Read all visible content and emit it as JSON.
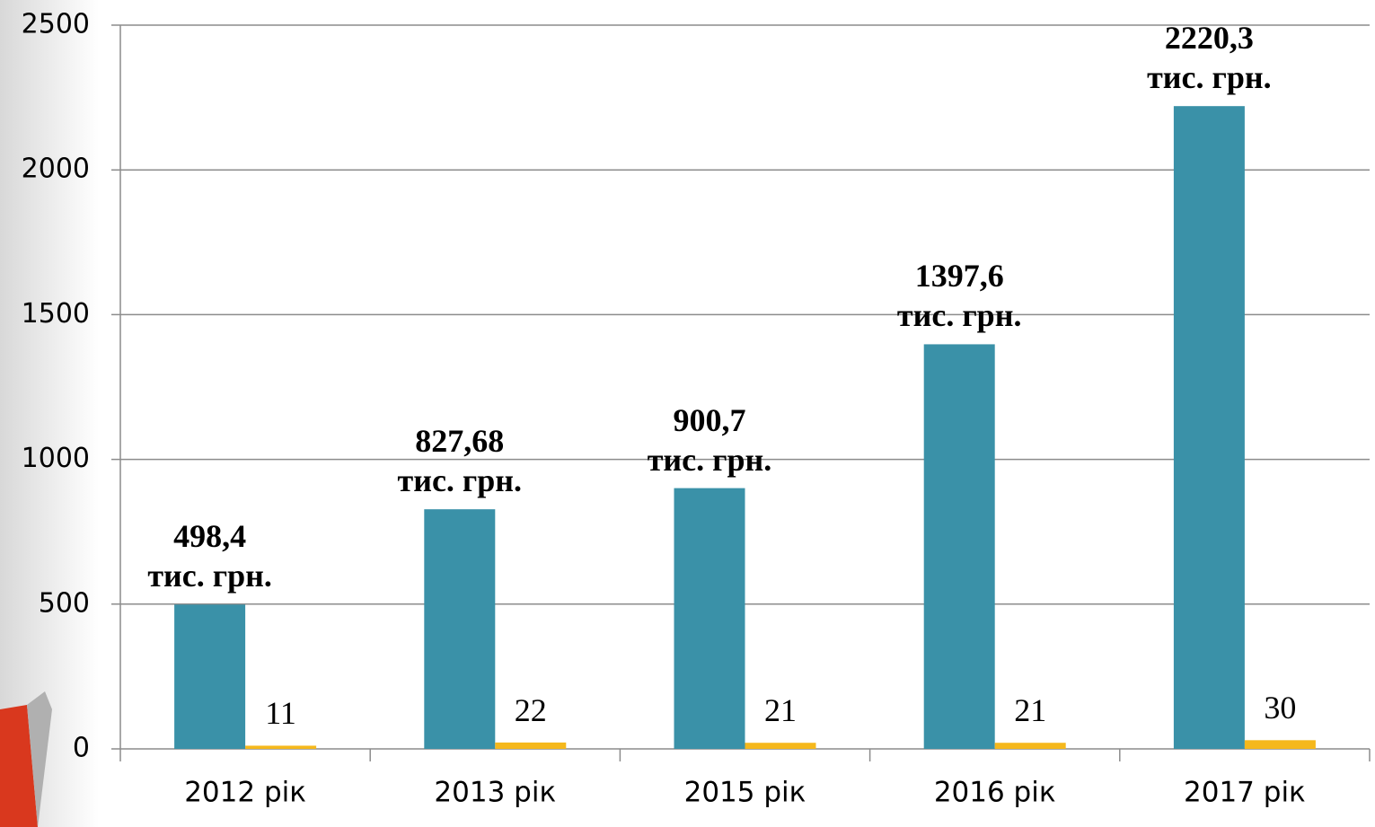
{
  "chart_data": {
    "type": "bar",
    "categories": [
      "2012 рік",
      "2013 рік",
      "2015 рік",
      "2016 рік",
      "2017 рік"
    ],
    "series": [
      {
        "color": "#3a91a8",
        "values": [
          498.4,
          827.68,
          900.7,
          1397.6,
          2220.3
        ],
        "value_labels": [
          "498,4\nтис. грн.",
          "827,68\nтис. грн.",
          "900,7\nтис. грн.",
          "1397,6\nтис. грн.",
          "2220,3\nтис. грн."
        ]
      },
      {
        "color": "#f5b81c",
        "values": [
          11,
          22,
          21,
          21,
          30
        ]
      }
    ],
    "ylim": [
      0,
      2500
    ],
    "yticks": [
      0,
      500,
      1000,
      1500,
      2000,
      2500
    ],
    "grid": true
  }
}
